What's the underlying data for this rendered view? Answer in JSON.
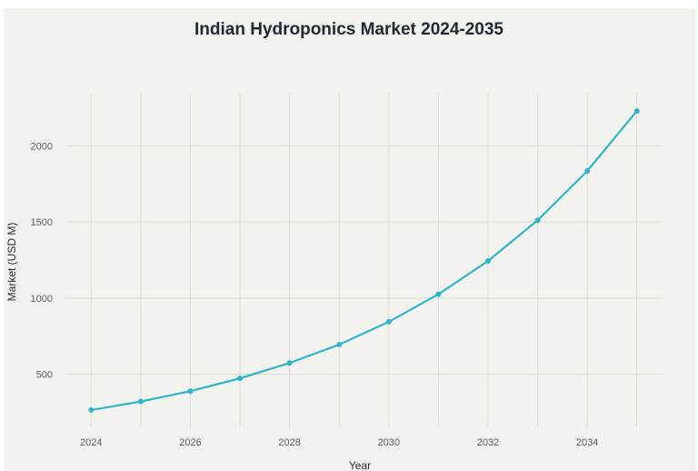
{
  "chart_data": {
    "type": "line",
    "title": "Indian Hydroponics Market 2024-2035",
    "xlabel": "Year",
    "ylabel": "Market (USD M)",
    "x": [
      2024,
      2025,
      2026,
      2027,
      2028,
      2029,
      2030,
      2031,
      2032,
      2033,
      2034,
      2035
    ],
    "series": [
      {
        "values": [
          264,
          320,
          388,
          472,
          573,
          694,
          844,
          1025,
          1244,
          1511,
          1835,
          2230
        ]
      }
    ],
    "xlim": [
      2023.5,
      2035.5
    ],
    "ylim": [
      150,
      2350
    ],
    "xticks": [
      "2024",
      "2026",
      "2028",
      "2030",
      "2032",
      "2034"
    ],
    "yticks": [
      "500",
      "1000",
      "1500",
      "2000"
    ],
    "grid": true,
    "line_color": "#2fb4cc"
  }
}
